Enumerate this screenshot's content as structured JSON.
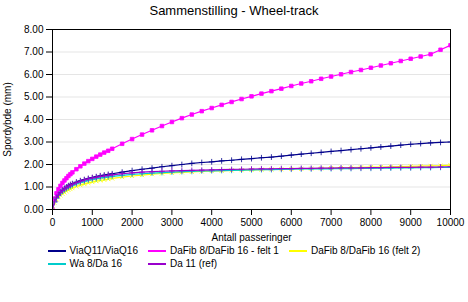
{
  "chart_data": {
    "type": "line",
    "title": "Sammenstilling - Wheel-track",
    "x_label": "Antall passeringer",
    "y_label": "Spordybde (mm)",
    "xlim": [
      0,
      10000
    ],
    "ylim": [
      0.0,
      8.0
    ],
    "xticks": [
      0,
      1000,
      2000,
      3000,
      4000,
      5000,
      6000,
      7000,
      8000,
      9000,
      10000
    ],
    "yticks": [
      {
        "value": 0,
        "label": "0.00"
      },
      {
        "value": 1,
        "label": "1.00"
      },
      {
        "value": 2,
        "label": "2.00"
      },
      {
        "value": 3,
        "label": "3.00"
      },
      {
        "value": 4,
        "label": "4.00"
      },
      {
        "value": 5,
        "label": "5.00"
      },
      {
        "value": 6,
        "label": "6.00"
      },
      {
        "value": 7,
        "label": "7.00"
      },
      {
        "value": 8,
        "label": "8.00"
      }
    ],
    "grid": true,
    "legend": "bottom",
    "x": [
      0,
      50,
      100,
      150,
      200,
      250,
      300,
      350,
      400,
      450,
      500,
      600,
      700,
      800,
      900,
      1000,
      1100,
      1200,
      1300,
      1400,
      1500,
      1750,
      2000,
      2250,
      2500,
      2750,
      3000,
      3250,
      3500,
      3750,
      4000,
      4250,
      4500,
      4750,
      5000,
      5250,
      5500,
      5750,
      6000,
      6250,
      6500,
      6750,
      7000,
      7250,
      7500,
      7750,
      8000,
      8250,
      8500,
      8750,
      9000,
      9250,
      9500,
      9750,
      10000
    ],
    "series": [
      {
        "name": "ViaQ11/ViaQ16",
        "color": "#00008b",
        "marker": "plus",
        "values": [
          0.0,
          0.35,
          0.55,
          0.68,
          0.78,
          0.87,
          0.94,
          1.0,
          1.06,
          1.11,
          1.15,
          1.22,
          1.28,
          1.33,
          1.38,
          1.42,
          1.46,
          1.5,
          1.53,
          1.56,
          1.59,
          1.66,
          1.73,
          1.79,
          1.84,
          1.9,
          1.95,
          2.0,
          2.05,
          2.09,
          2.12,
          2.16,
          2.19,
          2.23,
          2.26,
          2.3,
          2.33,
          2.37,
          2.42,
          2.46,
          2.5,
          2.54,
          2.58,
          2.62,
          2.66,
          2.7,
          2.74,
          2.78,
          2.82,
          2.86,
          2.9,
          2.93,
          2.96,
          2.98,
          3.0
        ]
      },
      {
        "name": "DaFib 8/DaFib 16 - felt 1",
        "color": "#ff00ff",
        "marker": "square",
        "values": [
          0.0,
          0.48,
          0.72,
          0.9,
          1.05,
          1.18,
          1.29,
          1.39,
          1.49,
          1.57,
          1.65,
          1.79,
          1.92,
          2.04,
          2.15,
          2.25,
          2.35,
          2.44,
          2.53,
          2.61,
          2.7,
          2.92,
          3.13,
          3.33,
          3.52,
          3.71,
          3.89,
          4.06,
          4.22,
          4.37,
          4.51,
          4.65,
          4.78,
          4.91,
          5.03,
          5.15,
          5.26,
          5.37,
          5.49,
          5.6,
          5.7,
          5.81,
          5.91,
          6.01,
          6.11,
          6.2,
          6.3,
          6.4,
          6.5,
          6.6,
          6.7,
          6.8,
          6.9,
          7.1,
          7.3
        ]
      },
      {
        "name": "DaFib 8/DaFib 16 (felt 2)",
        "color": "#ffff00",
        "marker": "cross",
        "values": [
          0.0,
          0.3,
          0.45,
          0.55,
          0.63,
          0.7,
          0.76,
          0.82,
          0.87,
          0.91,
          0.95,
          1.02,
          1.08,
          1.13,
          1.18,
          1.22,
          1.26,
          1.29,
          1.32,
          1.35,
          1.38,
          1.44,
          1.49,
          1.53,
          1.57,
          1.6,
          1.63,
          1.65,
          1.67,
          1.69,
          1.71,
          1.72,
          1.74,
          1.75,
          1.76,
          1.77,
          1.78,
          1.79,
          1.8,
          1.81,
          1.82,
          1.83,
          1.84,
          1.85,
          1.86,
          1.87,
          1.88,
          1.89,
          1.9,
          1.91,
          1.92,
          1.93,
          1.94,
          1.95,
          1.97
        ]
      },
      {
        "name": "Wa 8/Da 16",
        "color": "#00cccc",
        "marker": "plus",
        "values": [
          0.0,
          0.33,
          0.5,
          0.62,
          0.72,
          0.8,
          0.87,
          0.93,
          0.98,
          1.03,
          1.07,
          1.14,
          1.2,
          1.25,
          1.3,
          1.34,
          1.37,
          1.4,
          1.43,
          1.45,
          1.47,
          1.52,
          1.56,
          1.59,
          1.62,
          1.64,
          1.66,
          1.68,
          1.69,
          1.71,
          1.72,
          1.73,
          1.74,
          1.75,
          1.76,
          1.77,
          1.77,
          1.78,
          1.79,
          1.8,
          1.8,
          1.81,
          1.81,
          1.82,
          1.82,
          1.83,
          1.83,
          1.84,
          1.84,
          1.85,
          1.85,
          1.86,
          1.86,
          1.87,
          1.87
        ]
      },
      {
        "name": "Da 11 (ref)",
        "color": "#9900cc",
        "marker": "plus",
        "values": [
          0.0,
          0.34,
          0.52,
          0.65,
          0.75,
          0.84,
          0.91,
          0.97,
          1.03,
          1.08,
          1.12,
          1.19,
          1.25,
          1.31,
          1.36,
          1.4,
          1.43,
          1.47,
          1.49,
          1.52,
          1.54,
          1.59,
          1.63,
          1.66,
          1.68,
          1.7,
          1.72,
          1.73,
          1.74,
          1.75,
          1.76,
          1.77,
          1.78,
          1.79,
          1.8,
          1.81,
          1.81,
          1.82,
          1.82,
          1.83,
          1.83,
          1.84,
          1.84,
          1.85,
          1.85,
          1.85,
          1.86,
          1.86,
          1.87,
          1.87,
          1.87,
          1.88,
          1.88,
          1.89,
          1.9
        ]
      }
    ]
  }
}
